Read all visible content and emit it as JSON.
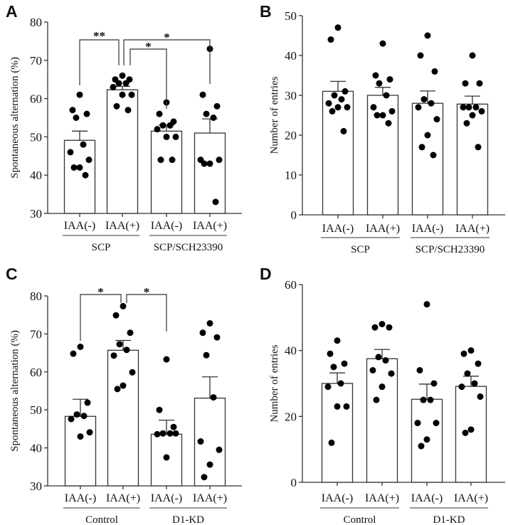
{
  "chart_data": [
    {
      "panel": "A",
      "type": "bar",
      "ylabel": "Spontaneous alternation (%)",
      "ylim": [
        30,
        80
      ],
      "yticks": [
        30,
        40,
        50,
        60,
        70,
        80
      ],
      "categories": [
        "IAA(-)",
        "IAA(+)",
        "IAA(-)",
        "IAA(+)"
      ],
      "groups": [
        {
          "label": "SCP",
          "span": [
            0,
            1
          ]
        },
        {
          "label": "SCP/SCH23390",
          "span": [
            2,
            3
          ]
        }
      ],
      "means": [
        49.1,
        62.3,
        51.5,
        51.0
      ],
      "sem": [
        2.4,
        0.9,
        1.6,
        3.7
      ],
      "points": [
        [
          61,
          57,
          56,
          55,
          48,
          46,
          44,
          42,
          42,
          40
        ],
        [
          66,
          65,
          65,
          64,
          64,
          63,
          61,
          61,
          58,
          57
        ],
        [
          59,
          56,
          54,
          53,
          53,
          52,
          50,
          50,
          44,
          44
        ],
        [
          73,
          61,
          58,
          56,
          55,
          44,
          44,
          43,
          43,
          33
        ]
      ],
      "significance": [
        {
          "pair": [
            0,
            1
          ],
          "label": "**"
        },
        {
          "pair": [
            1,
            3
          ],
          "label": "*"
        },
        {
          "pair": [
            1,
            2
          ],
          "label": "*"
        }
      ]
    },
    {
      "panel": "B",
      "type": "bar",
      "ylabel": "Number of entries",
      "ylim": [
        0,
        50
      ],
      "yticks": [
        0,
        10,
        20,
        30,
        40,
        50
      ],
      "categories": [
        "IAA(-)",
        "IAA(+)",
        "IAA(-)",
        "IAA(+)"
      ],
      "groups": [
        {
          "label": "SCP",
          "span": [
            0,
            1
          ]
        },
        {
          "label": "SCP/SCH23390",
          "span": [
            2,
            3
          ]
        }
      ],
      "means": [
        31.0,
        30.0,
        28.0,
        27.8
      ],
      "sem": [
        2.5,
        2.0,
        3.1,
        2.0
      ],
      "points": [
        [
          47,
          44,
          31,
          30,
          29,
          28,
          27,
          27,
          26,
          21
        ],
        [
          43,
          35,
          34,
          33,
          30,
          27,
          26,
          25,
          25,
          23
        ],
        [
          45,
          40,
          36,
          29,
          28,
          27,
          24,
          20,
          17,
          15
        ],
        [
          40,
          33,
          33,
          27,
          27,
          27,
          26,
          25,
          23,
          17
        ]
      ],
      "significance": []
    },
    {
      "panel": "C",
      "type": "bar",
      "ylabel": "Spontaneous alternation (%)",
      "ylim": [
        30,
        80
      ],
      "yticks": [
        30,
        40,
        50,
        60,
        70,
        80
      ],
      "categories": [
        "IAA(-)",
        "IAA(+)",
        "IAA(-)",
        "IAA(+)"
      ],
      "groups": [
        {
          "label": "Control",
          "span": [
            0,
            1
          ]
        },
        {
          "label": "D1-KD",
          "span": [
            2,
            3
          ]
        }
      ],
      "means": [
        48.3,
        65.7,
        43.6,
        53.1
      ],
      "sem": [
        4.5,
        2.6,
        3.7,
        5.6
      ],
      "points": [
        [
          66.6,
          64.8,
          51.9,
          48.8,
          48.4,
          47.6,
          44.1,
          43.0
        ],
        [
          77.3,
          74.9,
          70.3,
          67.3,
          65.8,
          64.3,
          59.9,
          56.4,
          55.5
        ],
        [
          63.3,
          50.0,
          45.5,
          43.8,
          43.8,
          43.6,
          43.8,
          37.5
        ],
        [
          72.8,
          70.3,
          69.1,
          64.4,
          53.3,
          41.7,
          39.5,
          35.6,
          32.3
        ]
      ],
      "significance": [
        {
          "pair": [
            0,
            1
          ],
          "label": "*"
        },
        {
          "pair": [
            1,
            2
          ],
          "label": "*"
        }
      ]
    },
    {
      "panel": "D",
      "type": "bar",
      "ylabel": "Number of entries",
      "ylim": [
        0,
        60
      ],
      "yticks": [
        0,
        20,
        40,
        60
      ],
      "categories": [
        "IAA(-)",
        "IAA(+)",
        "IAA(-)",
        "IAA(+)"
      ],
      "groups": [
        {
          "label": "Control",
          "span": [
            0,
            1
          ]
        },
        {
          "label": "D1-KD",
          "span": [
            2,
            3
          ]
        }
      ],
      "means": [
        30.0,
        37.5,
        25.2,
        29.1
      ],
      "sem": [
        3.2,
        2.8,
        4.6,
        3.1
      ],
      "points": [
        [
          43,
          39,
          36,
          35,
          30,
          29,
          23,
          23,
          12
        ],
        [
          48,
          47,
          47,
          38,
          37,
          34,
          33,
          29,
          25
        ],
        [
          54,
          34,
          30,
          25,
          25,
          18,
          18,
          13,
          11
        ],
        [
          40,
          39,
          36,
          33,
          30,
          29,
          26,
          16,
          15
        ]
      ],
      "significance": []
    }
  ]
}
